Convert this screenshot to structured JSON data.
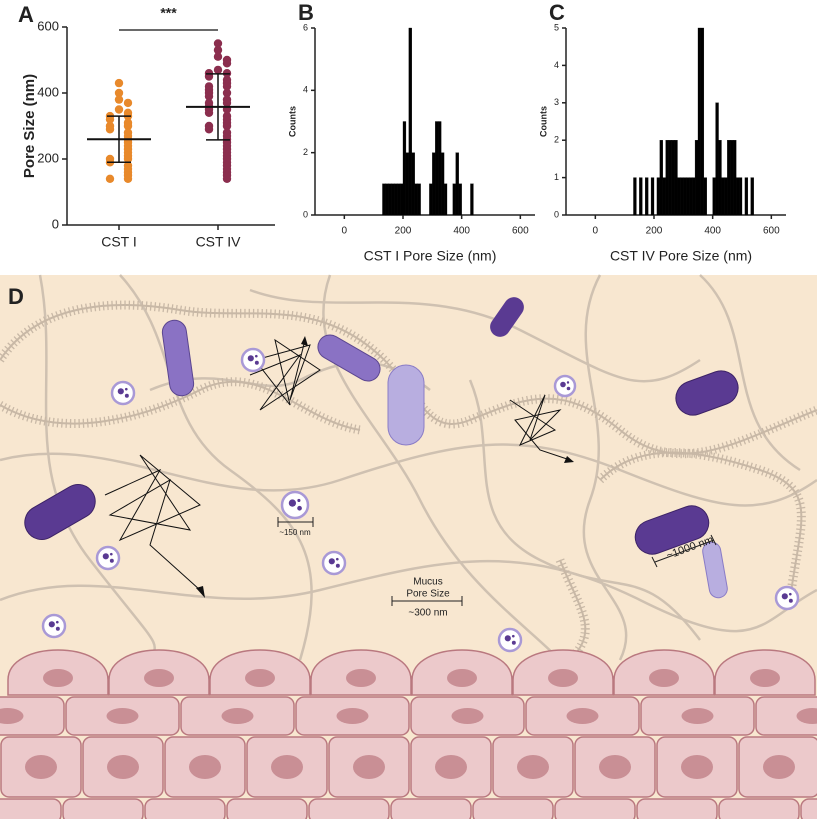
{
  "chart_data": [
    {
      "type": "strip",
      "panel": "A",
      "ylabel": "Pore Size (nm)",
      "annotation": "***",
      "categories": [
        "CST I",
        "CST IV"
      ],
      "ylim": [
        0,
        600
      ],
      "yticks": [
        0,
        200,
        400,
        600
      ],
      "series": [
        {
          "name": "CST I",
          "color": "#e8892b",
          "values": [
            430,
            400,
            380,
            370,
            350,
            340,
            330,
            330,
            320,
            310,
            300,
            300,
            290,
            280,
            270,
            260,
            250,
            240,
            230,
            220,
            210,
            200,
            200,
            190,
            180,
            170,
            160,
            150,
            140,
            140
          ]
        },
        {
          "name": "CST IV",
          "color": "#8b2e4e",
          "values": [
            550,
            530,
            510,
            500,
            490,
            470,
            460,
            460,
            450,
            440,
            430,
            420,
            420,
            410,
            400,
            400,
            390,
            380,
            370,
            370,
            360,
            350,
            350,
            340,
            330,
            320,
            310,
            300,
            300,
            290,
            280,
            270,
            260,
            250,
            240,
            230,
            220,
            210,
            200,
            190,
            180,
            170,
            160,
            150,
            140
          ]
        }
      ],
      "means": [
        260,
        358
      ],
      "sd": [
        70,
        100
      ]
    },
    {
      "type": "histogram",
      "panel": "B",
      "xlabel": "CST I Pore Size (nm)",
      "ylabel": "Counts",
      "color": "#000000",
      "xlim": [
        -100,
        650
      ],
      "xticks": [
        0,
        200,
        400,
        600
      ],
      "ylim": [
        0,
        6
      ],
      "yticks": [
        0,
        2,
        4,
        6
      ],
      "bins": [
        130,
        140,
        150,
        160,
        170,
        180,
        190,
        200,
        210,
        220,
        230,
        240,
        250,
        260,
        270,
        280,
        290,
        300,
        310,
        320,
        330,
        340,
        350,
        360,
        370,
        380,
        390,
        400,
        410,
        420,
        430,
        440,
        450
      ],
      "values": [
        1,
        1,
        1,
        1,
        1,
        1,
        1,
        3,
        2,
        6,
        2,
        1,
        1,
        0,
        0,
        0,
        1,
        2,
        3,
        3,
        2,
        1,
        0,
        0,
        1,
        2,
        1,
        0,
        0,
        0,
        1,
        0
      ]
    },
    {
      "type": "histogram",
      "panel": "C",
      "xlabel": "CST IV Pore Size (nm)",
      "ylabel": "Counts",
      "color": "#000000",
      "xlim": [
        -100,
        650
      ],
      "xticks": [
        0,
        200,
        400,
        600
      ],
      "ylim": [
        0,
        5
      ],
      "yticks": [
        0,
        1,
        2,
        3,
        4,
        5
      ],
      "bins": [
        130,
        140,
        150,
        160,
        170,
        180,
        190,
        200,
        210,
        220,
        230,
        240,
        250,
        260,
        270,
        280,
        290,
        300,
        310,
        320,
        330,
        340,
        350,
        360,
        370,
        380,
        390,
        400,
        410,
        420,
        430,
        440,
        450,
        460,
        470,
        480,
        490,
        500,
        510,
        520,
        530,
        540,
        550
      ],
      "values": [
        1,
        0,
        1,
        0,
        1,
        0,
        1,
        0,
        1,
        2,
        1,
        2,
        2,
        2,
        2,
        1,
        1,
        1,
        1,
        1,
        1,
        2,
        5,
        5,
        1,
        0,
        0,
        1,
        3,
        2,
        1,
        1,
        2,
        2,
        2,
        1,
        1,
        0,
        1,
        0,
        1,
        0
      ]
    }
  ],
  "illustration": {
    "panel": "D",
    "small_scale": "~150 nm",
    "mucus_1": "Mucus",
    "mucus_2": "Pore Size",
    "mucus_scale": "~300 nm",
    "bacterium_scale": "~1000 nm"
  }
}
